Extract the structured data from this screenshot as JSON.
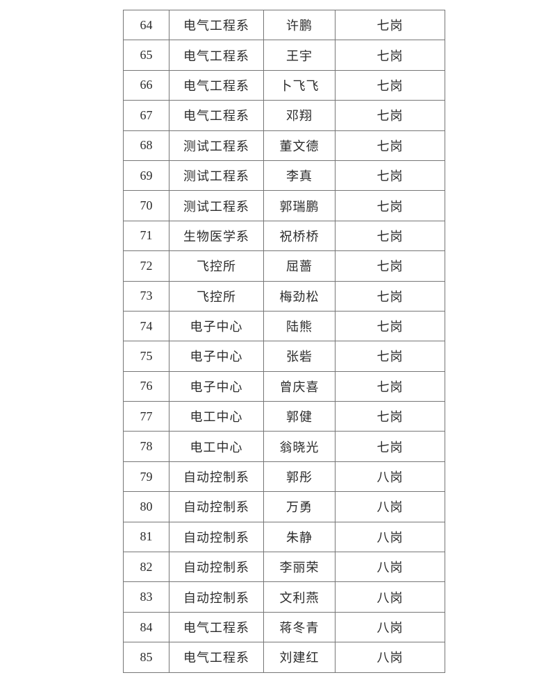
{
  "page": {
    "background_color": "#ffffff",
    "border_color": "#757575",
    "text_color": "#2b2b2b"
  },
  "table": {
    "columns": [
      {
        "key": "no"
      },
      {
        "key": "dept"
      },
      {
        "key": "name"
      },
      {
        "key": "grade"
      }
    ],
    "rows": [
      {
        "no": "64",
        "dept": "电气工程系",
        "name": "许鹏",
        "grade": "七岗"
      },
      {
        "no": "65",
        "dept": "电气工程系",
        "name": "王宇",
        "grade": "七岗"
      },
      {
        "no": "66",
        "dept": "电气工程系",
        "name": "卜飞飞",
        "grade": "七岗"
      },
      {
        "no": "67",
        "dept": "电气工程系",
        "name": "邓翔",
        "grade": "七岗"
      },
      {
        "no": "68",
        "dept": "测试工程系",
        "name": "董文德",
        "grade": "七岗"
      },
      {
        "no": "69",
        "dept": "测试工程系",
        "name": "李真",
        "grade": "七岗"
      },
      {
        "no": "70",
        "dept": "测试工程系",
        "name": "郭瑞鹏",
        "grade": "七岗"
      },
      {
        "no": "71",
        "dept": "生物医学系",
        "name": "祝桥桥",
        "grade": "七岗"
      },
      {
        "no": "72",
        "dept": "飞控所",
        "name": "屈蔷",
        "grade": "七岗"
      },
      {
        "no": "73",
        "dept": "飞控所",
        "name": "梅劲松",
        "grade": "七岗"
      },
      {
        "no": "74",
        "dept": "电子中心",
        "name": "陆熊",
        "grade": "七岗"
      },
      {
        "no": "75",
        "dept": "电子中心",
        "name": "张砦",
        "grade": "七岗"
      },
      {
        "no": "76",
        "dept": "电子中心",
        "name": "曾庆喜",
        "grade": "七岗"
      },
      {
        "no": "77",
        "dept": "电工中心",
        "name": "郭健",
        "grade": "七岗"
      },
      {
        "no": "78",
        "dept": "电工中心",
        "name": "翁晓光",
        "grade": "七岗"
      },
      {
        "no": "79",
        "dept": "自动控制系",
        "name": "郭彤",
        "grade": "八岗"
      },
      {
        "no": "80",
        "dept": "自动控制系",
        "name": "万勇",
        "grade": "八岗"
      },
      {
        "no": "81",
        "dept": "自动控制系",
        "name": "朱静",
        "grade": "八岗"
      },
      {
        "no": "82",
        "dept": "自动控制系",
        "name": "李丽荣",
        "grade": "八岗"
      },
      {
        "no": "83",
        "dept": "自动控制系",
        "name": "文利燕",
        "grade": "八岗"
      },
      {
        "no": "84",
        "dept": "电气工程系",
        "name": "蒋冬青",
        "grade": "八岗"
      },
      {
        "no": "85",
        "dept": "电气工程系",
        "name": "刘建红",
        "grade": "八岗"
      }
    ]
  }
}
